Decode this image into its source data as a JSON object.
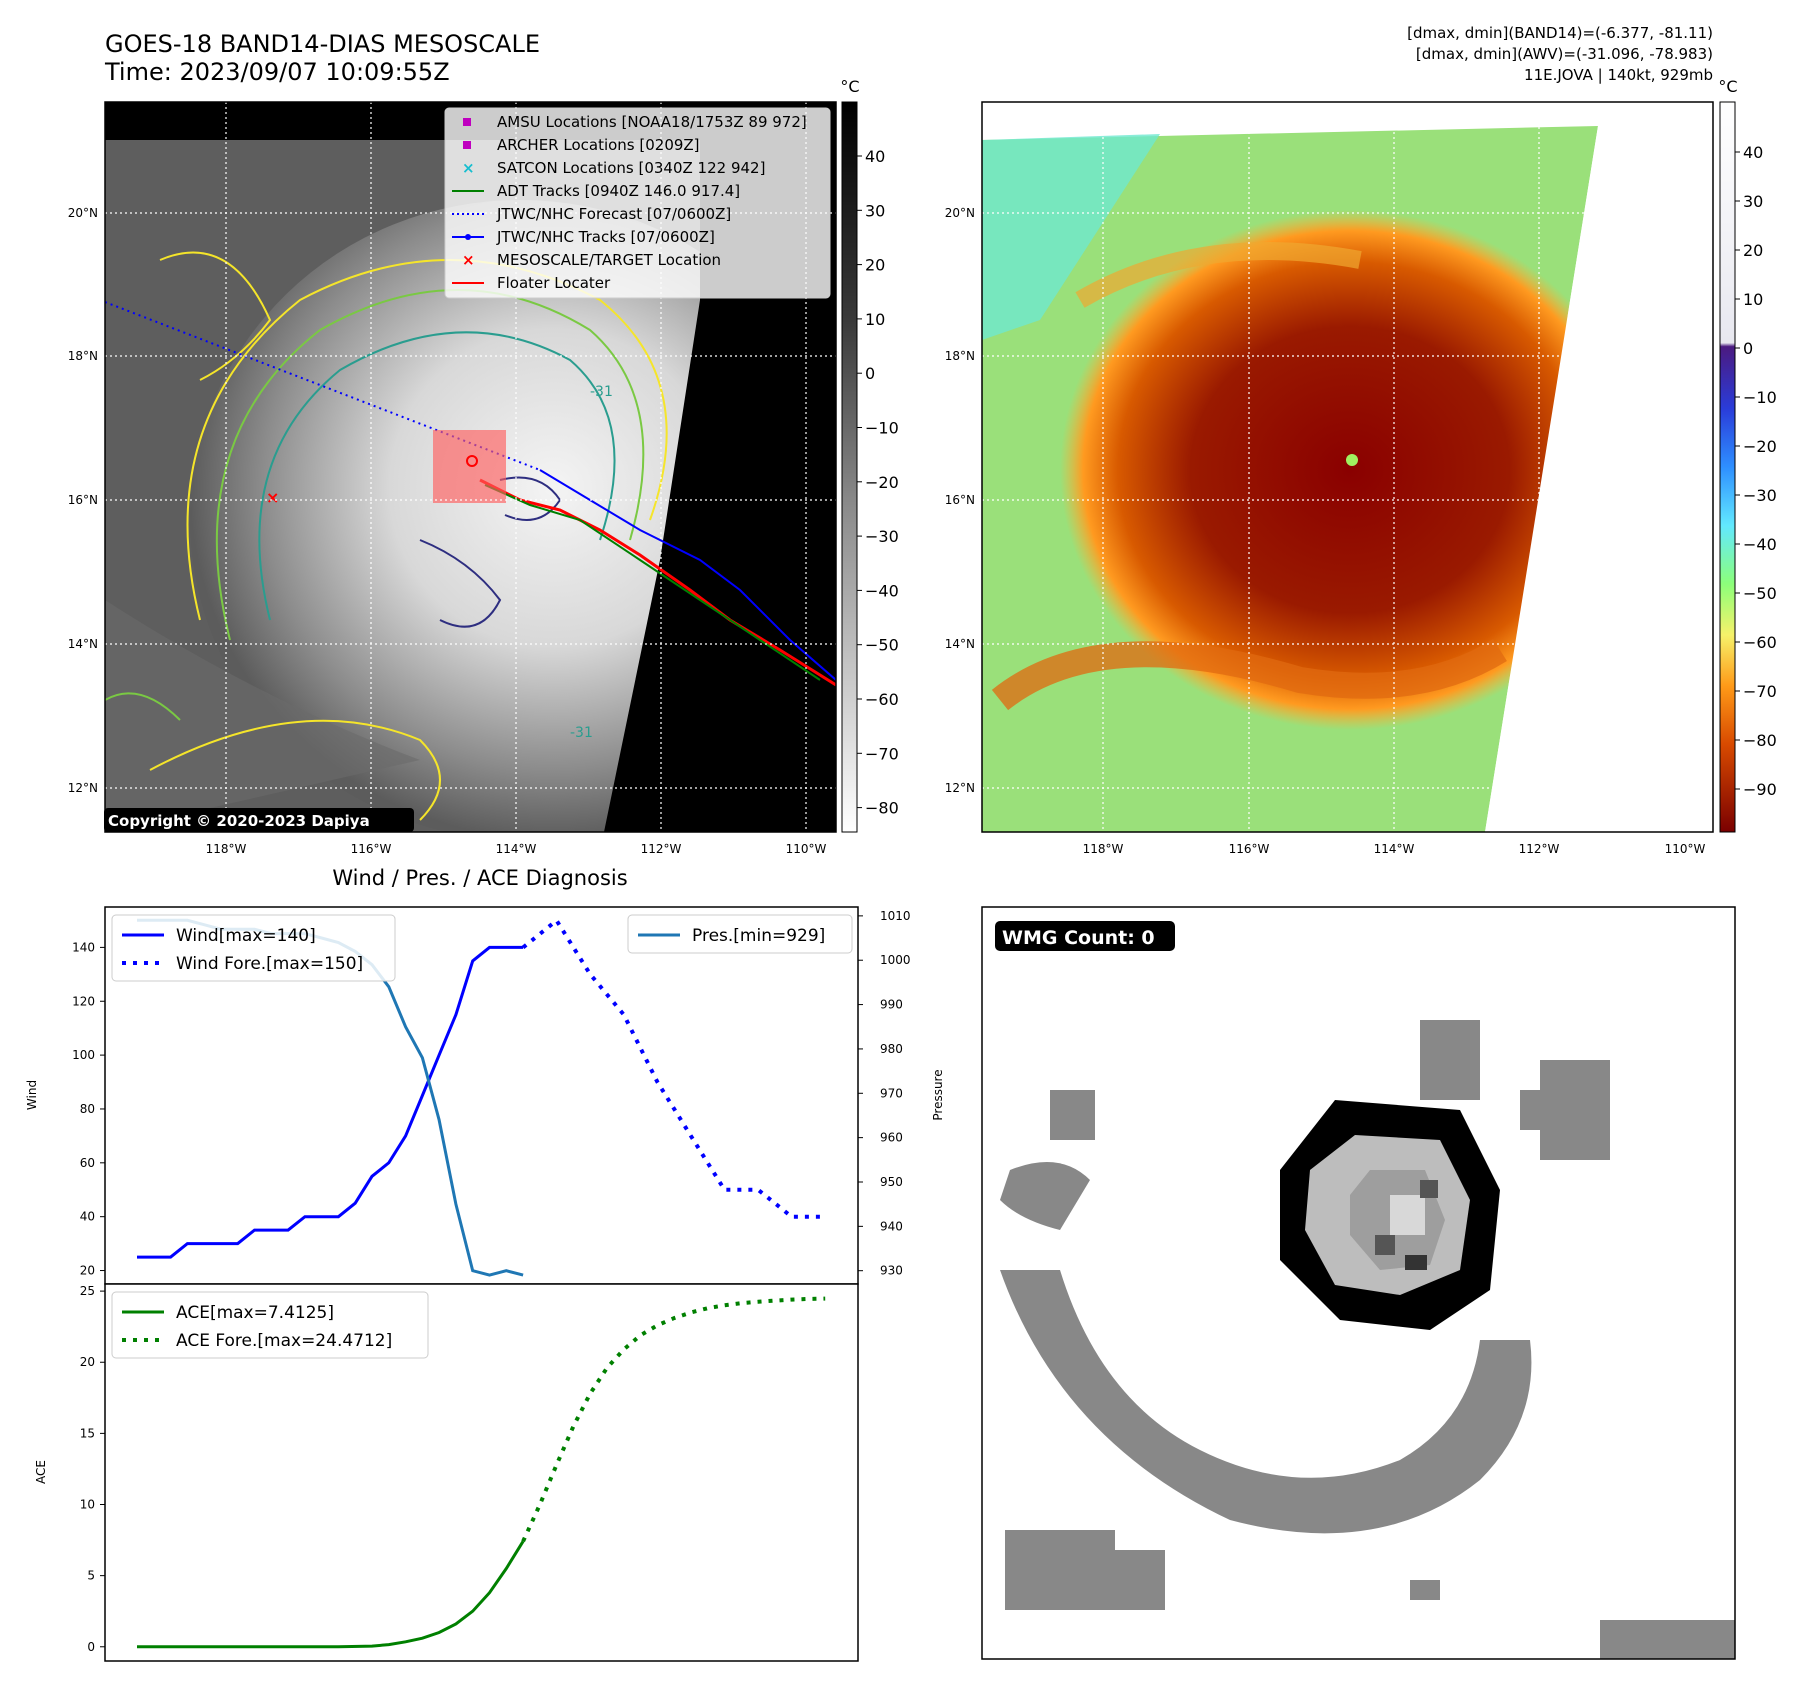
{
  "header": {
    "title_line1": "GOES-18 BAND14-DIAS MESOSCALE",
    "title_line2": "Time: 2023/09/07 10:09:55Z",
    "info_line1": "[dmax, dmin](BAND14)=(-6.377, -81.11)",
    "info_line2": "[dmax, dmin](AWV)=(-31.096, -78.983)",
    "info_line3": "11E.JOVA | 140kt, 929mb"
  },
  "map_axes": {
    "lat_labels": [
      "20°N",
      "18°N",
      "16°N",
      "14°N",
      "12°N"
    ],
    "lon_labels": [
      "118°W",
      "116°W",
      "114°W",
      "112°W",
      "110°W"
    ]
  },
  "ir_panel": {
    "copyright": "Copyright © 2020-2023 Dapiya",
    "contour_label": "-31",
    "colorbar_unit": "°C",
    "colorbar_ticks": [
      "40",
      "30",
      "20",
      "10",
      "0",
      "−10",
      "−20",
      "−30",
      "−40",
      "−50",
      "−60",
      "−70",
      "−80"
    ],
    "legend": [
      {
        "label": "AMSU Locations [NOAA18/1753Z 89 972]",
        "color": "#bf00bf",
        "marker": "square"
      },
      {
        "label": "ARCHER Locations [0209Z]",
        "color": "#bf00bf",
        "marker": "square"
      },
      {
        "label": "SATCON Locations [0340Z 122 942]",
        "color": "#17becf",
        "marker": "x"
      },
      {
        "label": "ADT Tracks [0940Z 146.0 917.4]",
        "color": "#008000",
        "marker": "line"
      },
      {
        "label": "JTWC/NHC Forecast [07/0600Z]",
        "color": "#0000ff",
        "marker": "dotted"
      },
      {
        "label": "JTWC/NHC Tracks [07/0600Z]",
        "color": "#0000ff",
        "marker": "line-dot"
      },
      {
        "label": "MESOSCALE/TARGET Location",
        "color": "#ff0000",
        "marker": "x"
      },
      {
        "label": "Floater Locater",
        "color": "#ff0000",
        "marker": "line"
      }
    ]
  },
  "awv_panel": {
    "colorbar_unit": "°C",
    "colorbar_ticks": [
      "40",
      "30",
      "20",
      "10",
      "0",
      "−10",
      "−20",
      "−30",
      "−40",
      "−50",
      "−60",
      "−70",
      "−80",
      "−90"
    ]
  },
  "wmg_panel": {
    "badge": "WMG Count: 0"
  },
  "chart_data": [
    {
      "type": "line",
      "title": "Wind / Pres. / ACE Diagnosis",
      "ylabel": "Wind",
      "ylabel_right": "Pressure",
      "ylim": [
        15,
        155
      ],
      "ylim_right": [
        927,
        1012
      ],
      "yticks": [
        20,
        40,
        60,
        80,
        100,
        120,
        140
      ],
      "yticks_right": [
        930,
        940,
        950,
        960,
        970,
        980,
        990,
        1000,
        1010
      ],
      "x": [
        0,
        1,
        2,
        3,
        4,
        5,
        6,
        7,
        8,
        9,
        10,
        11,
        12,
        13,
        14,
        15,
        16,
        17,
        18,
        19,
        20,
        21,
        22,
        23,
        24,
        25,
        26,
        27,
        28,
        29,
        30,
        31,
        32,
        33,
        34,
        35,
        36,
        37,
        38,
        39,
        40
      ],
      "series": [
        {
          "name": "Wind[max=140]",
          "color": "#0000ff",
          "style": "solid",
          "x": [
            0,
            2,
            3,
            4,
            5,
            6,
            7,
            8,
            9,
            10,
            11,
            12,
            13,
            14,
            15,
            16,
            17,
            18,
            19,
            20,
            21,
            22,
            23
          ],
          "values": [
            25,
            25,
            30,
            30,
            30,
            30,
            35,
            35,
            35,
            40,
            40,
            40,
            45,
            55,
            60,
            70,
            85,
            100,
            115,
            135,
            140,
            140,
            140
          ]
        },
        {
          "name": "Wind Fore.[max=150]",
          "color": "#0000ff",
          "style": "dotted",
          "x": [
            23,
            25,
            27,
            29,
            31,
            33,
            35,
            37,
            39,
            41
          ],
          "values": [
            140,
            150,
            130,
            115,
            90,
            70,
            50,
            50,
            40,
            40
          ]
        },
        {
          "name": "Pres.[min=929]",
          "color": "#1f77b4",
          "style": "solid",
          "axis": "right",
          "x": [
            0,
            3,
            4,
            5,
            6,
            7,
            8,
            9,
            10,
            11,
            12,
            13,
            14,
            15,
            16,
            17,
            18,
            19,
            20,
            21,
            22,
            23
          ],
          "values": [
            1009,
            1009,
            1008,
            1007,
            1007,
            1007,
            1006,
            1006,
            1006,
            1005,
            1004,
            1002,
            999,
            994,
            985,
            978,
            964,
            945,
            930,
            929,
            930,
            929
          ]
        }
      ]
    },
    {
      "type": "line",
      "ylabel": "ACE",
      "ylim": [
        -1,
        25.5
      ],
      "yticks": [
        0,
        5,
        10,
        15,
        20,
        25
      ],
      "series": [
        {
          "name": "ACE[max=7.4125]",
          "color": "#008000",
          "style": "solid",
          "x": [
            0,
            4,
            8,
            12,
            14,
            15,
            16,
            17,
            18,
            19,
            20,
            21,
            22,
            23
          ],
          "values": [
            0,
            0,
            0,
            0,
            0.05,
            0.15,
            0.35,
            0.6,
            1.0,
            1.6,
            2.5,
            3.8,
            5.5,
            7.4125
          ]
        },
        {
          "name": "ACE Fore.[max=24.4712]",
          "color": "#008000",
          "style": "dotted",
          "x": [
            23,
            24,
            25,
            26,
            27,
            28,
            29,
            30,
            31,
            32,
            33,
            34,
            35,
            36,
            37,
            38,
            39,
            40,
            41
          ],
          "values": [
            7.4125,
            10,
            12.8,
            15.5,
            17.8,
            19.6,
            20.9,
            21.9,
            22.6,
            23.1,
            23.5,
            23.8,
            24.0,
            24.15,
            24.25,
            24.33,
            24.4,
            24.45,
            24.4712
          ]
        }
      ]
    }
  ]
}
